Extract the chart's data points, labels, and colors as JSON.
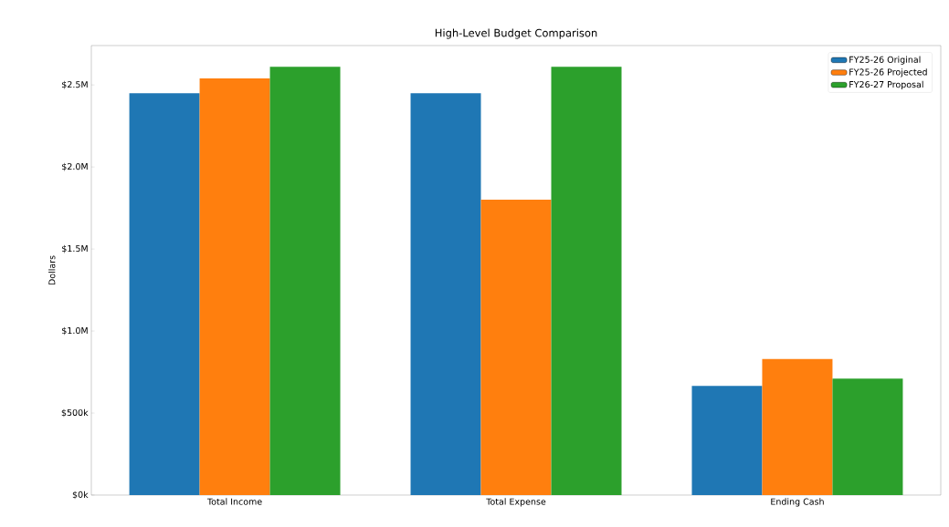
{
  "chart_data": {
    "type": "bar",
    "title": "High-Level Budget Comparison",
    "ylabel": "Dollars",
    "categories": [
      "Total Income",
      "Total Expense",
      "Ending Cash"
    ],
    "series": [
      {
        "name": "FY25-26 Original",
        "color": "#1f77b4",
        "values": [
          2450000,
          2450000,
          665000
        ]
      },
      {
        "name": "FY25-26 Projected",
        "color": "#ff7f0e",
        "values": [
          2540000,
          1800000,
          830000
        ]
      },
      {
        "name": "FY26-27 Proposal",
        "color": "#2ca02c",
        "values": [
          2610000,
          2610000,
          710000
        ]
      }
    ],
    "ylim": [
      0,
      2740000
    ],
    "yticks": [
      {
        "value": 0,
        "label": "$0k"
      },
      {
        "value": 500000,
        "label": "$500k"
      },
      {
        "value": 1000000,
        "label": "$1.0M"
      },
      {
        "value": 1500000,
        "label": "$1.5M"
      },
      {
        "value": 2000000,
        "label": "$2.0M"
      },
      {
        "value": 2500000,
        "label": "$2.5M"
      }
    ],
    "legend": "top right",
    "grid": false
  }
}
